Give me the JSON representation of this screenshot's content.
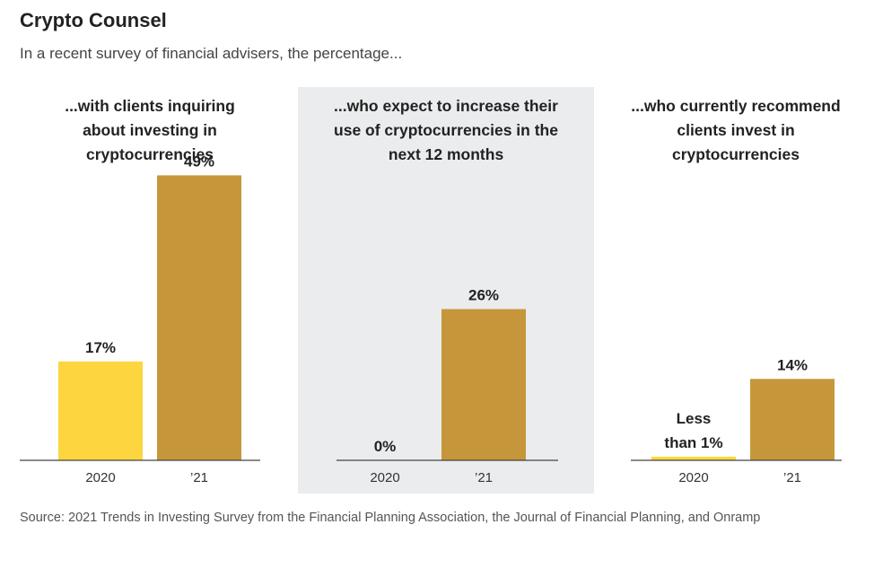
{
  "title": "Crypto Counsel",
  "subtitle": "In a recent survey of financial advisers, the percentage...",
  "colors": {
    "bar_2020": "#fdd63f",
    "bar_2021": "#c6973a",
    "panel_shade": "#ebeced",
    "axis": "#444444"
  },
  "chart_data": [
    {
      "type": "bar",
      "title": "...with clients inquiring about investing in cryptocurrencies",
      "title_lines": [
        "...with clients inquiring",
        "about investing in",
        "cryptocurrencies"
      ],
      "categories": [
        "2020",
        "’21"
      ],
      "values": [
        17,
        49
      ],
      "value_labels": [
        "17%",
        "49%"
      ],
      "ylim": [
        0,
        55
      ]
    },
    {
      "type": "bar",
      "title": "...who expect to increase their use of cryptocurrencies in the next 12 months",
      "title_lines": [
        "...who expect to increase their",
        "use of cryptocurrencies in the",
        "next 12 months"
      ],
      "categories": [
        "2020",
        "’21"
      ],
      "values": [
        0,
        26
      ],
      "value_labels": [
        "0%",
        "26%"
      ],
      "ylim": [
        0,
        55
      ]
    },
    {
      "type": "bar",
      "title": "...who currently recommend clients invest in cryptocurrencies",
      "title_lines": [
        "...who currently recommend",
        "clients invest in",
        "cryptocurrencies"
      ],
      "categories": [
        "2020",
        "’21"
      ],
      "values": [
        0.5,
        14
      ],
      "value_labels": [
        "Less than 1%",
        "14%"
      ],
      "value_label_lines": [
        [
          "Less",
          "than 1%"
        ],
        [
          "14%"
        ]
      ],
      "ylim": [
        0,
        55
      ]
    }
  ],
  "source": "Source: 2021 Trends in Investing Survey from the Financial Planning Association, the Journal of Financial Planning, and Onramp"
}
